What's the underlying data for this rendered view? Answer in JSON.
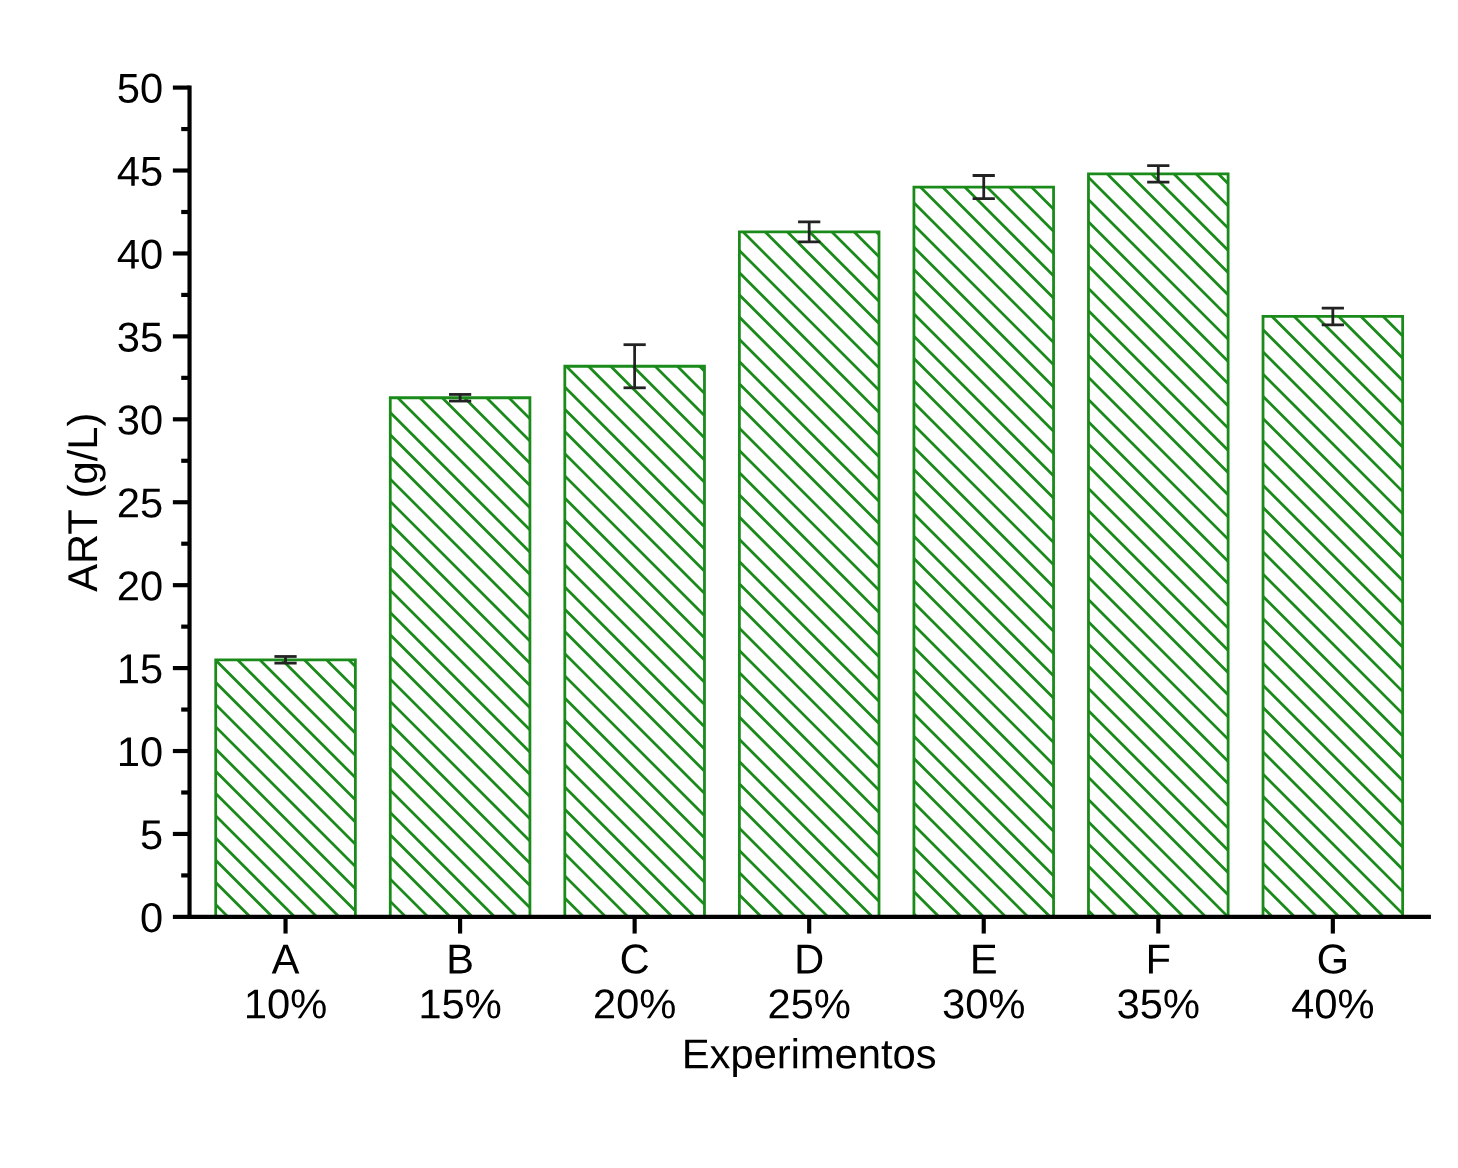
{
  "chart_data": {
    "type": "bar",
    "xlabel": "Experimentos",
    "ylabel": "ART (g/L)",
    "categories": [
      "A\n10%",
      "B\n15%",
      "C\n20%",
      "D\n25%",
      "E\n30%",
      "F\n35%",
      "G\n40%"
    ],
    "values": [
      15.5,
      31.3,
      33.2,
      41.3,
      44.0,
      44.8,
      36.2
    ],
    "errors": [
      0.2,
      0.2,
      1.3,
      0.6,
      0.7,
      0.5,
      0.5
    ],
    "color": "#1a8a1a",
    "ylim": [
      0,
      50
    ],
    "yticks": [
      0,
      5,
      10,
      15,
      20,
      25,
      30,
      35,
      40,
      45,
      50
    ],
    "grid": false
  }
}
